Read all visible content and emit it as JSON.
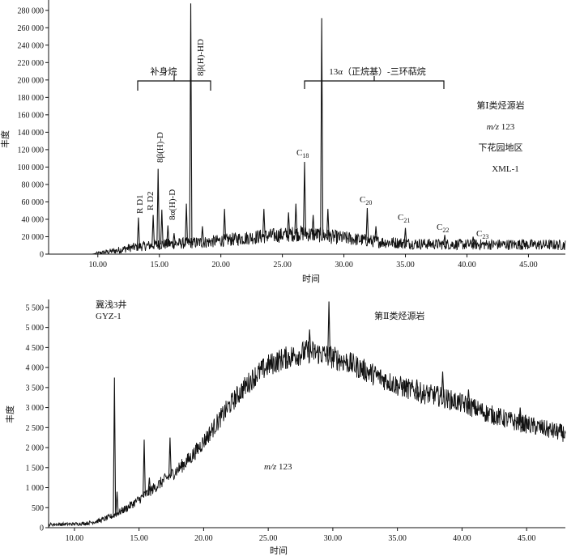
{
  "chart_data": [
    {
      "type": "line",
      "xlabel": "时间",
      "ylabel": "丰度",
      "xlim": [
        6.0,
        48.0
      ],
      "ylim": [
        0,
        290000
      ],
      "x_ticks": [
        10,
        15,
        20,
        25,
        30,
        35,
        40,
        45
      ],
      "x_tick_labels": [
        "10.00",
        "15.00",
        "20.00",
        "25.00",
        "30.00",
        "35.00",
        "40.00",
        "45.00"
      ],
      "y_ticks": [
        0,
        20000,
        40000,
        60000,
        80000,
        100000,
        120000,
        140000,
        160000,
        180000,
        200000,
        220000,
        240000,
        260000,
        280000
      ],
      "y_tick_labels": [
        "0",
        "20 000",
        "40 000",
        "60 000",
        "80 000",
        "100 000",
        "120 000",
        "140 000",
        "160 000",
        "180 000",
        "200 000",
        "220 000",
        "240 000",
        "260 000",
        "280 000"
      ],
      "baseline": [
        [
          6.0,
          0
        ],
        [
          9.5,
          0
        ],
        [
          10.5,
          2000
        ],
        [
          11.5,
          4000
        ],
        [
          12.5,
          7000
        ],
        [
          13.5,
          9000
        ],
        [
          15.0,
          11000
        ],
        [
          17.0,
          12500
        ],
        [
          19.0,
          14000
        ],
        [
          21.0,
          17000
        ],
        [
          23.0,
          20000
        ],
        [
          25.0,
          22000
        ],
        [
          26.5,
          24000
        ],
        [
          28.0,
          22000
        ],
        [
          29.0,
          20000
        ],
        [
          31.0,
          17000
        ],
        [
          33.0,
          14000
        ],
        [
          35.0,
          12500
        ],
        [
          37.0,
          11500
        ],
        [
          40.0,
          11000
        ],
        [
          44.0,
          11000
        ],
        [
          48.0,
          10500
        ]
      ],
      "peaks": [
        {
          "x": 13.3,
          "y": 42000
        },
        {
          "x": 14.5,
          "y": 45000
        },
        {
          "x": 14.9,
          "y": 98000
        },
        {
          "x": 15.2,
          "y": 51000
        },
        {
          "x": 15.7,
          "y": 33000
        },
        {
          "x": 16.2,
          "y": 24000
        },
        {
          "x": 17.2,
          "y": 58000
        },
        {
          "x": 17.55,
          "y": 288000
        },
        {
          "x": 18.5,
          "y": 32000
        },
        {
          "x": 20.3,
          "y": 52000
        },
        {
          "x": 23.5,
          "y": 52000
        },
        {
          "x": 25.5,
          "y": 48000
        },
        {
          "x": 26.1,
          "y": 58000
        },
        {
          "x": 26.8,
          "y": 106000
        },
        {
          "x": 27.5,
          "y": 45000
        },
        {
          "x": 28.2,
          "y": 271000
        },
        {
          "x": 28.7,
          "y": 52000
        },
        {
          "x": 31.9,
          "y": 53000
        },
        {
          "x": 32.6,
          "y": 32000
        },
        {
          "x": 35.0,
          "y": 30000
        },
        {
          "x": 38.2,
          "y": 22000
        },
        {
          "x": 40.5,
          "y": 20000
        },
        {
          "x": 44.5,
          "y": 17000
        }
      ],
      "annotations": {
        "group_label_1": "补身烷",
        "group_label_2": "13α（正烷基）-三环萜烷",
        "peak_8b_hd": "8β(H)-HD",
        "peak_8b_d": "8β(H)-D",
        "peak_8a_d": "8α(H)-D",
        "peak_rd1": "R D1",
        "peak_rd2": "R D2",
        "c18": "C",
        "c18_sub": "18",
        "c20": "C",
        "c20_sub": "20",
        "c21": "C",
        "c21_sub": "21",
        "c22": "C",
        "c22_sub": "22",
        "c23": "C",
        "c23_sub": "23"
      },
      "info": {
        "line1": "第Ⅰ类烃源岩",
        "line2_italic": "m/z",
        "line2_value": " 123",
        "line3": "下花园地区",
        "line4": "XML-1"
      }
    },
    {
      "type": "line",
      "xlabel": "时间",
      "ylabel": "丰度",
      "xlim": [
        8.0,
        48.0
      ],
      "ylim": [
        0,
        5700
      ],
      "x_ticks": [
        10,
        15,
        20,
        25,
        30,
        35,
        40,
        45
      ],
      "x_tick_labels": [
        "10.00",
        "15.00",
        "20.00",
        "25.00",
        "30.00",
        "35.00",
        "40.00",
        "45.00"
      ],
      "y_ticks": [
        0,
        500,
        1000,
        1500,
        2000,
        2500,
        3000,
        3500,
        4000,
        4500,
        5000,
        5500
      ],
      "y_tick_labels": [
        "0",
        "500",
        "1 000",
        "1 500",
        "2 000",
        "2 500",
        "3 000",
        "3 500",
        "4 000",
        "4 500",
        "5 000",
        "5 500"
      ],
      "baseline": [
        [
          8.0,
          80
        ],
        [
          10.0,
          90
        ],
        [
          11.0,
          110
        ],
        [
          12.0,
          180
        ],
        [
          13.0,
          300
        ],
        [
          14.0,
          480
        ],
        [
          15.0,
          700
        ],
        [
          16.0,
          950
        ],
        [
          17.0,
          1200
        ],
        [
          18.0,
          1450
        ],
        [
          19.0,
          1750
        ],
        [
          20.0,
          2150
        ],
        [
          21.0,
          2600
        ],
        [
          22.0,
          3050
        ],
        [
          23.0,
          3450
        ],
        [
          24.0,
          3800
        ],
        [
          25.0,
          4050
        ],
        [
          26.0,
          4200
        ],
        [
          27.0,
          4300
        ],
        [
          28.0,
          4400
        ],
        [
          29.0,
          4350
        ],
        [
          30.0,
          4250
        ],
        [
          31.0,
          4150
        ],
        [
          32.0,
          4000
        ],
        [
          33.0,
          3850
        ],
        [
          34.0,
          3700
        ],
        [
          35.0,
          3550
        ],
        [
          36.0,
          3450
        ],
        [
          37.0,
          3350
        ],
        [
          38.0,
          3300
        ],
        [
          39.0,
          3200
        ],
        [
          40.0,
          3100
        ],
        [
          41.0,
          2980
        ],
        [
          42.0,
          2850
        ],
        [
          43.0,
          2750
        ],
        [
          44.0,
          2650
        ],
        [
          45.0,
          2580
        ],
        [
          46.0,
          2500
        ],
        [
          47.0,
          2420
        ],
        [
          48.0,
          2350
        ]
      ],
      "peaks": [
        {
          "x": 13.1,
          "y": 3750
        },
        {
          "x": 13.3,
          "y": 900
        },
        {
          "x": 15.4,
          "y": 2200
        },
        {
          "x": 15.8,
          "y": 1250
        },
        {
          "x": 17.4,
          "y": 2250
        },
        {
          "x": 29.7,
          "y": 5650
        },
        {
          "x": 28.2,
          "y": 4950
        },
        {
          "x": 38.5,
          "y": 3900
        },
        {
          "x": 36.5,
          "y": 3700
        },
        {
          "x": 40.5,
          "y": 3450
        },
        {
          "x": 44.5,
          "y": 3000
        }
      ],
      "info": {
        "well": "冀浅3井",
        "sample": "GYZ-1",
        "type_label": "第Ⅱ类烃源岩",
        "mz_italic": "m/z",
        "mz_value": " 123"
      }
    }
  ]
}
